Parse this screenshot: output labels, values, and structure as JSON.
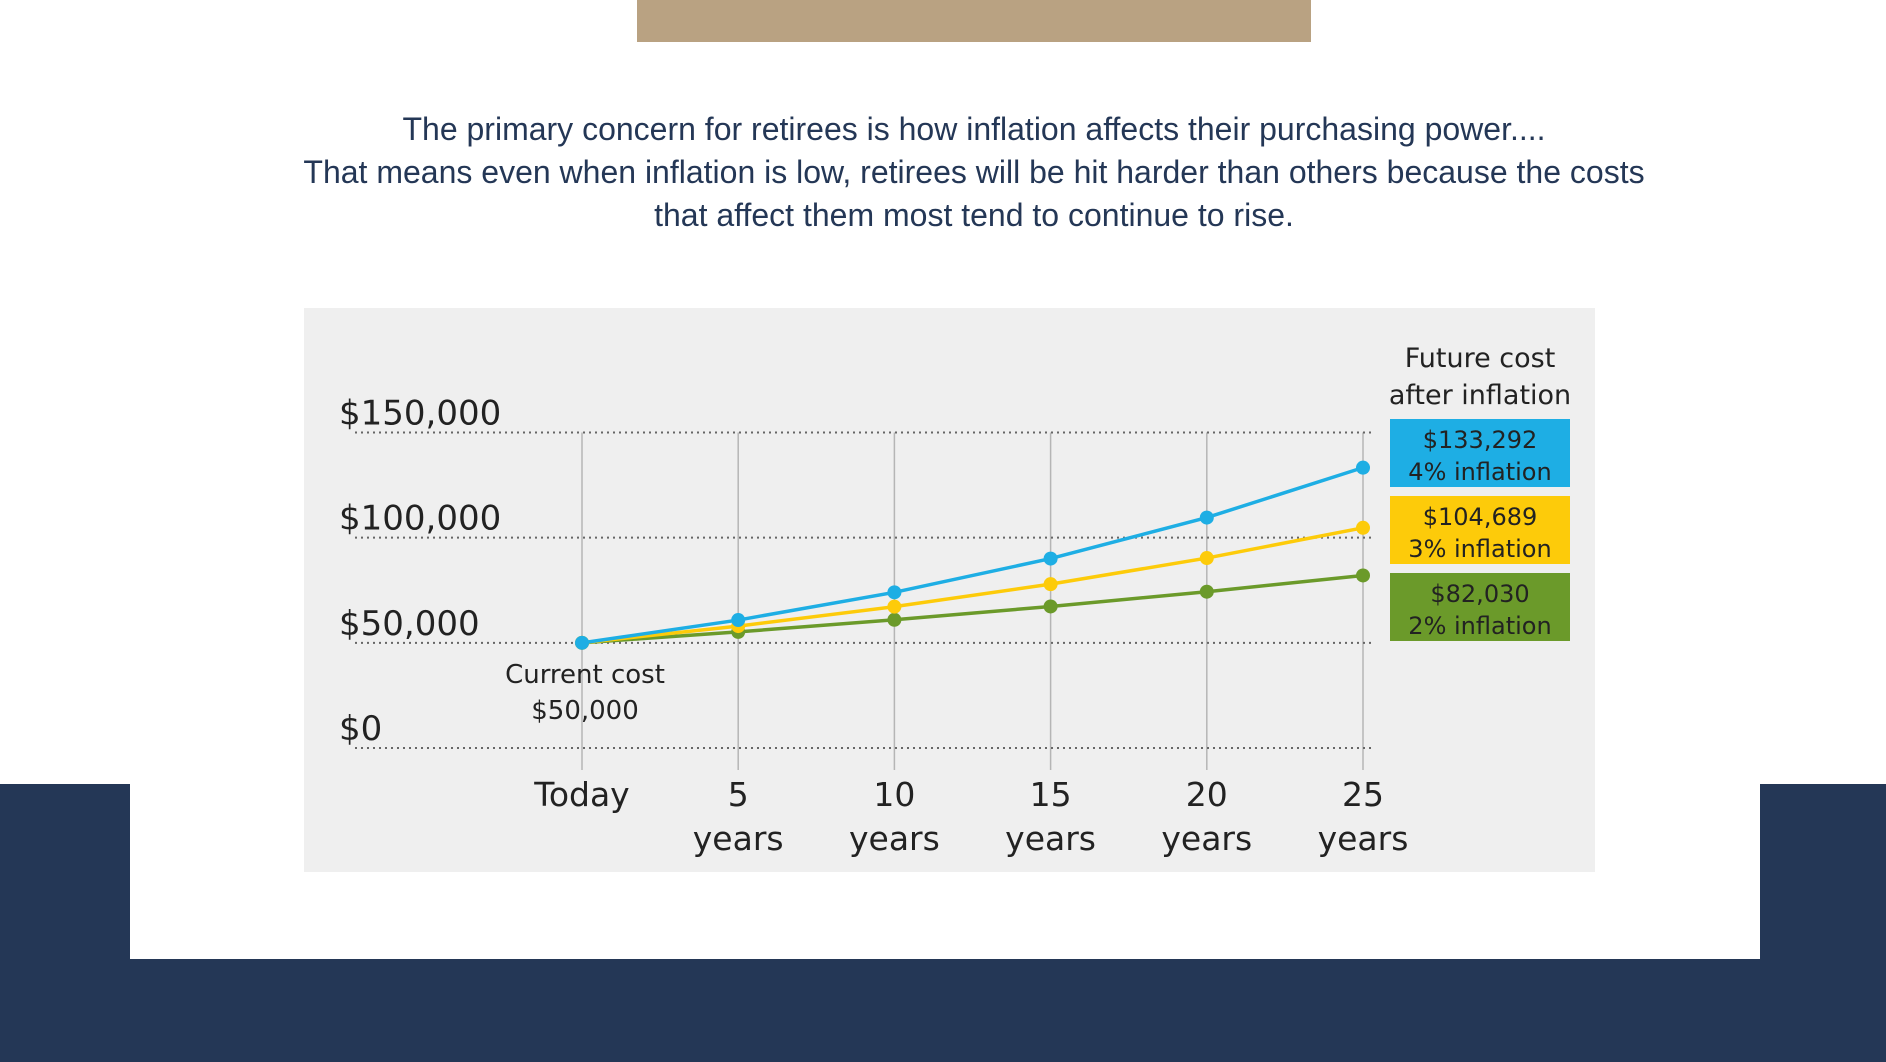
{
  "intro": {
    "line1": "The primary concern for retirees is how inflation affects their purchasing power....",
    "line2": "That means even when inflation is low, retirees will be hit harder than others because the costs",
    "line3": "that affect them most tend to continue to rise."
  },
  "colors": {
    "accent_bar": "#b9a282",
    "navy": "#243756",
    "panel": "#efefef"
  },
  "chart_data": {
    "type": "line",
    "x": [
      "Today",
      "5 years",
      "10 years",
      "15 years",
      "20 years",
      "25 years"
    ],
    "x_tick_lines": [
      [
        "Today",
        ""
      ],
      [
        "5",
        "years"
      ],
      [
        "10",
        "years"
      ],
      [
        "15",
        "years"
      ],
      [
        "20",
        "years"
      ],
      [
        "25",
        "years"
      ]
    ],
    "ylim": [
      0,
      150000
    ],
    "yticks": [
      0,
      50000,
      100000,
      150000
    ],
    "ytick_labels": [
      "$0",
      "$50,000",
      "$100,000",
      "$150,000"
    ],
    "grid": "horizontal dotted, vertical solid",
    "annotation": {
      "line1": "Current cost",
      "line2": "$50,000"
    },
    "legend_title": {
      "line1": "Future cost",
      "line2": "after inflation"
    },
    "legend_placement": "right",
    "series": [
      {
        "name": "4% inflation",
        "value_label": "$133,292",
        "color": "#1eaee4",
        "values": [
          50000,
          60833,
          74012,
          90047,
          109556,
          133292
        ]
      },
      {
        "name": "3% inflation",
        "value_label": "$104,689",
        "color": "#fdcb0a",
        "values": [
          50000,
          57964,
          67196,
          77898,
          90306,
          104689
        ]
      },
      {
        "name": "2% inflation",
        "value_label": "$82,030",
        "color": "#6b9a2a",
        "values": [
          50000,
          55204,
          60950,
          67293,
          74297,
          82030
        ]
      }
    ]
  }
}
